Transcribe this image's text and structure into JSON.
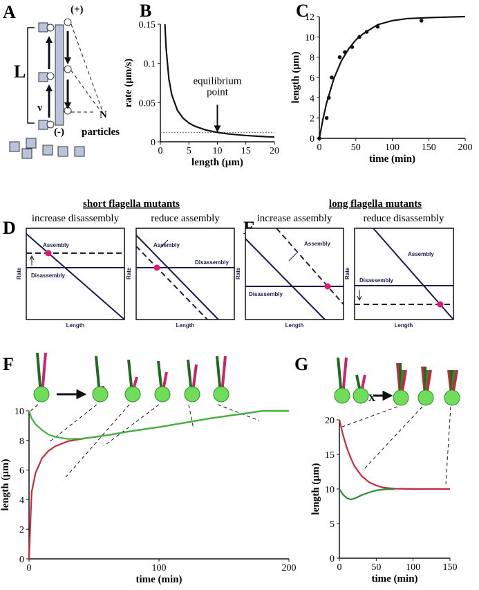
{
  "panel_a": {
    "label": "A",
    "plus": "(+)",
    "minus": "(-)",
    "length": "L",
    "speed": "v",
    "count": "N",
    "particles": "particles"
  },
  "panel_d": {
    "label": "D",
    "title": "short flagella mutants",
    "subtitles": [
      "increase disassembly",
      "reduce assembly"
    ],
    "boxes": [
      {
        "assembly": "Assembly",
        "disassembly": "Disassembly",
        "y_label": "Rate",
        "x_label": "Length"
      },
      {
        "assembly": "Assembly",
        "disassembly": "Disassembly",
        "y_label": "Rate",
        "x_label": "Length"
      }
    ]
  },
  "panel_e": {
    "label": "E",
    "title": "long flagella mutants",
    "subtitles": [
      "increase assembly",
      "reduce disassembly"
    ],
    "boxes": [
      {
        "assembly": "Assembly",
        "disassembly": "Disassembly",
        "y_label": "Rate",
        "x_label": "Length"
      },
      {
        "assembly": "Assembly",
        "disassembly": "Disassembly",
        "y_label": "Rate",
        "x_label": "Length"
      }
    ]
  },
  "panel_g_cross": "X",
  "chart_data": [
    {
      "type": "line",
      "label": "B",
      "x_label": "length (µm)",
      "y_label": "rate (µm/s)",
      "xlim": [
        0,
        20
      ],
      "xticks": [
        0,
        5,
        10,
        15,
        20
      ],
      "ylim": [
        0,
        0.15
      ],
      "yticks": [
        0,
        0.05,
        0.1,
        0.15
      ],
      "series": [
        {
          "color": "#111111",
          "x": [
            0.8,
            1,
            1.5,
            2,
            3,
            4,
            5,
            6,
            8,
            10,
            12,
            15,
            18,
            20
          ],
          "values": [
            0.15,
            0.12,
            0.08,
            0.06,
            0.04,
            0.03,
            0.024,
            0.02,
            0.015,
            0.012,
            0.01,
            0.008,
            0.0067,
            0.006
          ]
        }
      ],
      "reference_y": 0.012,
      "annotation": {
        "text": [
          "equilibrium",
          "point"
        ],
        "x": 10,
        "y": 0.012
      }
    },
    {
      "type": "line",
      "label": "C",
      "x_label": "time (min)",
      "y_label": "length (µm)",
      "xlim": [
        0,
        200
      ],
      "xticks": [
        0,
        50,
        100,
        150,
        200
      ],
      "ylim": [
        0,
        12
      ],
      "yticks": [
        0,
        2,
        4,
        6,
        8,
        10,
        12
      ],
      "series": [
        {
          "color": "#111111",
          "style": "line",
          "x": [
            0,
            5,
            10,
            20,
            30,
            40,
            50,
            60,
            80,
            100,
            120,
            150,
            200
          ],
          "values": [
            0,
            1.9,
            3.5,
            5.9,
            7.6,
            8.8,
            9.7,
            10.3,
            11.2,
            11.6,
            11.8,
            11.9,
            12
          ]
        },
        {
          "color": "#111111",
          "style": "points",
          "x": [
            0,
            10,
            13,
            17,
            28,
            35,
            45,
            55,
            65,
            80,
            140
          ],
          "values": [
            0,
            2,
            4,
            6,
            8,
            8.5,
            9,
            10,
            10.5,
            11,
            11.6
          ]
        }
      ]
    },
    {
      "type": "line",
      "label": "F",
      "x_label": "time (min)",
      "y_label": "length (µm)",
      "xlim": [
        0,
        200
      ],
      "xticks": [
        0,
        100,
        200
      ],
      "ylim": [
        0,
        10
      ],
      "yticks": [
        0,
        2,
        4,
        6,
        8,
        10
      ],
      "series": [
        {
          "color": "#c8283c",
          "style": "line",
          "x": [
            0,
            2,
            5,
            10,
            15,
            20,
            30,
            40,
            60,
            80,
            100,
            120,
            140,
            160,
            180,
            200
          ],
          "values": [
            0,
            4.5,
            5.8,
            6.8,
            7.3,
            7.6,
            7.95,
            8.1,
            8.35,
            8.65,
            8.9,
            9.2,
            9.5,
            9.75,
            10,
            10
          ]
        },
        {
          "color": "#3cb43c",
          "style": "line",
          "x": [
            0,
            2,
            5,
            10,
            15,
            20,
            30,
            40,
            60,
            80,
            100,
            120,
            140,
            160,
            180,
            200
          ],
          "values": [
            10,
            9.5,
            9.1,
            8.7,
            8.4,
            8.25,
            8.1,
            8.12,
            8.35,
            8.65,
            8.9,
            9.2,
            9.5,
            9.75,
            10,
            10
          ]
        }
      ]
    },
    {
      "type": "line",
      "label": "G",
      "x_label": "time (min)",
      "y_label": "length (µm)",
      "xlim": [
        0,
        150
      ],
      "xticks": [
        0,
        50,
        100,
        150
      ],
      "ylim": [
        0,
        20
      ],
      "yticks": [
        0,
        5,
        10,
        15,
        20
      ],
      "series": [
        {
          "color": "#c8283c",
          "style": "line",
          "x": [
            0,
            5,
            10,
            15,
            20,
            30,
            40,
            50,
            60,
            75,
            100,
            125,
            150
          ],
          "values": [
            20,
            17.8,
            16,
            14.6,
            13.4,
            11.9,
            11,
            10.5,
            10.2,
            10.05,
            10,
            10,
            10
          ]
        },
        {
          "color": "#2e8a2e",
          "style": "line",
          "x": [
            0,
            5,
            10,
            15,
            20,
            30,
            40,
            50,
            60,
            75
          ],
          "values": [
            10,
            9.2,
            8.7,
            8.5,
            8.6,
            9.1,
            9.5,
            9.8,
            9.95,
            10
          ]
        }
      ]
    }
  ]
}
